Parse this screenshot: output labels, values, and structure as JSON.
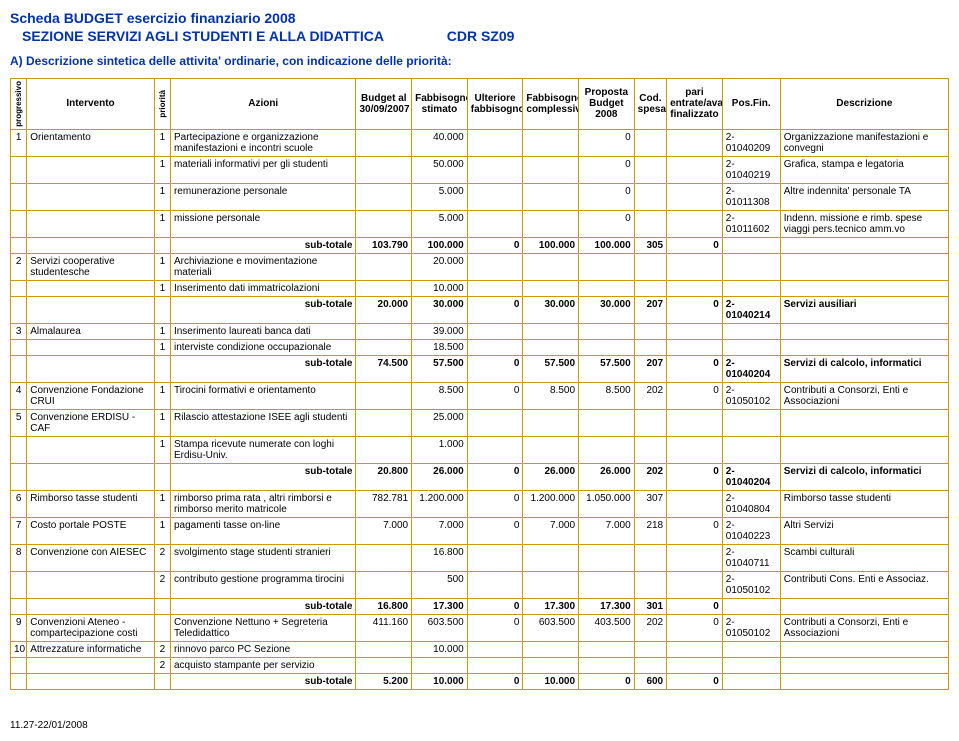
{
  "header": {
    "main": "Scheda  BUDGET esercizio finanziario 2008",
    "section": "SEZIONE  SERVIZI AGLI STUDENTI E ALLA DIDATTICA",
    "cdr": "CDR SZ09",
    "subtitle": "A) Descrizione sintetica delle attivita' ordinarie, con indicazione delle priorità:"
  },
  "columns": {
    "c0": "progressivo",
    "c1": "Intervento",
    "c2": "priorità",
    "c3": "Azioni",
    "c4": "Budget al 30/09/2007",
    "c5": "Fabbisogno stimato",
    "c6": "Ulteriore fabbisogno",
    "c7": "Fabbisogno complessivo",
    "c8": "Proposta Budget 2008",
    "c9": "Cod. spesa",
    "c10": "pari entrate/avanzo finalizzato",
    "c11": "Pos.Fin.",
    "c12": "Descrizione"
  },
  "rows": [
    {
      "prog": "1",
      "int": "Orientamento",
      "prio": "1",
      "az": "Partecipazione e organizzazione manifestazioni e incontri scuole",
      "b": "",
      "fs": "40.000",
      "uf": "",
      "fc": "",
      "pb": "0",
      "cs": "",
      "pe": "",
      "pf": "2-01040209",
      "d": "Organizzazione manifestazioni e convegni"
    },
    {
      "prog": "",
      "int": "",
      "prio": "1",
      "az": "materiali informativi per gli studenti",
      "b": "",
      "fs": "50.000",
      "uf": "",
      "fc": "",
      "pb": "0",
      "cs": "",
      "pe": "",
      "pf": "2-01040219",
      "d": "Grafica, stampa e legatoria"
    },
    {
      "prog": "",
      "int": "",
      "prio": "1",
      "az": "remunerazione personale",
      "b": "",
      "fs": "5.000",
      "uf": "",
      "fc": "",
      "pb": "0",
      "cs": "",
      "pe": "",
      "pf": "2-01011308",
      "d": "Altre indennita' personale TA"
    },
    {
      "prog": "",
      "int": "",
      "prio": "1",
      "az": "missione personale",
      "b": "",
      "fs": "5.000",
      "uf": "",
      "fc": "",
      "pb": "0",
      "cs": "",
      "pe": "",
      "pf": "2-01011602",
      "d": "Indenn. missione e rimb. spese viaggi pers.tecnico amm.vo"
    },
    {
      "sub": true,
      "az": "sub-totale",
      "b": "103.790",
      "fs": "100.000",
      "uf": "0",
      "fc": "100.000",
      "pb": "100.000",
      "cs": "305",
      "pe": "0",
      "pf": "",
      "d": ""
    },
    {
      "prog": "2",
      "int": "Servizi cooperative studentesche",
      "prio": "1",
      "az": "Archiviazione e movimentazione materiali",
      "b": "",
      "fs": "20.000",
      "uf": "",
      "fc": "",
      "pb": "",
      "cs": "",
      "pe": "",
      "pf": "",
      "d": ""
    },
    {
      "prog": "",
      "int": "",
      "prio": "1",
      "az": "Inserimento dati immatricolazioni",
      "b": "",
      "fs": "10.000",
      "uf": "",
      "fc": "",
      "pb": "",
      "cs": "",
      "pe": "",
      "pf": "",
      "d": ""
    },
    {
      "sub": true,
      "az": "sub-totale",
      "b": "20.000",
      "fs": "30.000",
      "uf": "0",
      "fc": "30.000",
      "pb": "30.000",
      "cs": "207",
      "pe": "0",
      "pf": "2-01040214",
      "d": "Servizi ausiliari"
    },
    {
      "prog": "3",
      "int": "Almalaurea",
      "prio": "1",
      "az": "Inserimento laureati banca dati",
      "b": "",
      "fs": "39.000",
      "uf": "",
      "fc": "",
      "pb": "",
      "cs": "",
      "pe": "",
      "pf": "",
      "d": ""
    },
    {
      "prog": "",
      "int": "",
      "prio": "1",
      "az": "interviste condizione occupazionale",
      "b": "",
      "fs": "18.500",
      "uf": "",
      "fc": "",
      "pb": "",
      "cs": "",
      "pe": "",
      "pf": "",
      "d": ""
    },
    {
      "sub": true,
      "az": "sub-totale",
      "b": "74.500",
      "fs": "57.500",
      "uf": "0",
      "fc": "57.500",
      "pb": "57.500",
      "cs": "207",
      "pe": "0",
      "pf": "2-01040204",
      "d": "Servizi di calcolo, informatici"
    },
    {
      "prog": "4",
      "int": "Convenzione Fondazione CRUI",
      "prio": "1",
      "az": "Tirocini formativi e orientamento",
      "b": "",
      "fs": "8.500",
      "uf": "0",
      "fc": "8.500",
      "pb": "8.500",
      "cs": "202",
      "pe": "0",
      "pf": "2-01050102",
      "d": "Contributi a Consorzi, Enti e Associazioni"
    },
    {
      "prog": "5",
      "int": "Convenzione ERDISU - CAF",
      "prio": "1",
      "az": "Rilascio attestazione ISEE agli studenti",
      "b": "",
      "fs": "25.000",
      "uf": "",
      "fc": "",
      "pb": "",
      "cs": "",
      "pe": "",
      "pf": "",
      "d": ""
    },
    {
      "prog": "",
      "int": "",
      "prio": "1",
      "az": "Stampa ricevute numerate con loghi Erdisu-Univ.",
      "b": "",
      "fs": "1.000",
      "uf": "",
      "fc": "",
      "pb": "",
      "cs": "",
      "pe": "",
      "pf": "",
      "d": ""
    },
    {
      "sub": true,
      "az": "sub-totale",
      "b": "20.800",
      "fs": "26.000",
      "uf": "0",
      "fc": "26.000",
      "pb": "26.000",
      "cs": "202",
      "pe": "0",
      "pf": "2-01040204",
      "d": "Servizi di calcolo, informatici"
    },
    {
      "prog": "6",
      "int": "Rimborso tasse studenti",
      "prio": "1",
      "az": "rimborso prima rata , altri rimborsi e rimborso merito matricole",
      "b": "782.781",
      "fs": "1.200.000",
      "uf": "0",
      "fc": "1.200.000",
      "pb": "1.050.000",
      "cs": "307",
      "pe": "",
      "pf": "2-01040804",
      "d": "Rimborso tasse studenti"
    },
    {
      "prog": "7",
      "int": "Costo portale POSTE",
      "prio": "1",
      "az": "pagamenti tasse on-line",
      "b": "7.000",
      "fs": "7.000",
      "uf": "0",
      "fc": "7.000",
      "pb": "7.000",
      "cs": "218",
      "pe": "0",
      "pf": "2-01040223",
      "d": "Altri  Servizi"
    },
    {
      "prog": "8",
      "int": "Convenzione con AIESEC",
      "prio": "2",
      "az": "svolgimento stage studenti stranieri",
      "b": "",
      "fs": "16.800",
      "uf": "",
      "fc": "",
      "pb": "",
      "cs": "",
      "pe": "",
      "pf": "2-01040711",
      "d": "Scambi culturali"
    },
    {
      "prog": "",
      "int": "",
      "prio": "2",
      "az": "contributo gestione programma tirocini",
      "b": "",
      "fs": "500",
      "uf": "",
      "fc": "",
      "pb": "",
      "cs": "",
      "pe": "",
      "pf": "2-01050102",
      "d": "Contributi Cons. Enti e Associaz."
    },
    {
      "sub": true,
      "az": "sub-totale",
      "b": "16.800",
      "fs": "17.300",
      "uf": "0",
      "fc": "17.300",
      "pb": "17.300",
      "cs": "301",
      "pe": "0",
      "pf": "",
      "d": ""
    },
    {
      "prog": "9",
      "int": "Convenzioni Ateneo - compartecipazione costi",
      "prio": "",
      "az": "Convenzione Nettuno + Segreteria Teledidattico",
      "b": "411.160",
      "fs": "603.500",
      "uf": "0",
      "fc": "603.500",
      "pb": "403.500",
      "cs": "202",
      "pe": "0",
      "pf": "2-01050102",
      "d": "Contributi a Consorzi, Enti e Associazioni"
    },
    {
      "prog": "10",
      "int": "Attrezzature informatiche",
      "prio": "2",
      "az": "rinnovo parco PC Sezione",
      "b": "",
      "fs": "10.000",
      "uf": "",
      "fc": "",
      "pb": "",
      "cs": "",
      "pe": "",
      "pf": "",
      "d": ""
    },
    {
      "prog": "",
      "int": "",
      "prio": "2",
      "az": "acquisto stampante per servizio",
      "b": "",
      "fs": "",
      "uf": "",
      "fc": "",
      "pb": "",
      "cs": "",
      "pe": "",
      "pf": "",
      "d": ""
    },
    {
      "sub": true,
      "az": "sub-totale",
      "b": "5.200",
      "fs": "10.000",
      "uf": "0",
      "fc": "10.000",
      "pb": "0",
      "cs": "600",
      "pe": "0",
      "pf": "",
      "d": ""
    }
  ],
  "footer": "11.27-22/01/2008"
}
